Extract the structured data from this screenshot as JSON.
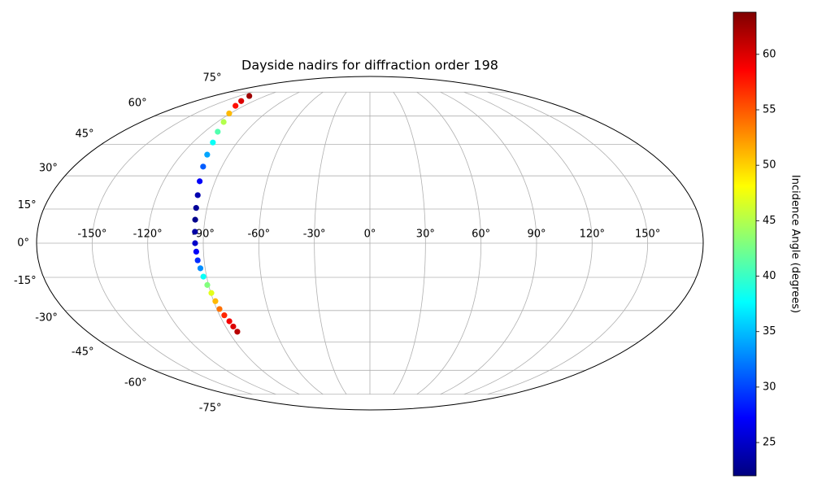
{
  "chart_data": {
    "type": "scatter",
    "projection": "mollweide",
    "title": "Dayside nadirs for diffraction order 198",
    "x": [
      -138.6,
      -133,
      -128,
      -121,
      -115,
      -110.5,
      -106.4,
      -103.7,
      -101.4,
      -99,
      -97.1,
      -96,
      -95.3,
      -94.7,
      -94.4,
      -93.9,
      -93.5,
      -92.6,
      -91.8,
      -90.7,
      -89.7,
      -89,
      -88.4,
      -87.2,
      -85.9,
      -85.2,
      -84.5
    ],
    "y": [
      72.3,
      69,
      66,
      61.5,
      56.7,
      51.5,
      46,
      40,
      34.3,
      27.5,
      21.2,
      15.5,
      10.3,
      5,
      0,
      -3.7,
      -7.5,
      -11,
      -14.7,
      -18.4,
      -22,
      -25.7,
      -29.3,
      -32.2,
      -35,
      -37.5,
      -40
    ],
    "c": [
      62.5,
      60,
      58,
      51,
      45,
      41,
      38,
      34,
      31,
      27,
      24,
      23,
      22.5,
      23.5,
      25,
      27,
      29,
      33,
      38,
      43,
      47,
      51,
      54,
      57,
      59,
      60,
      61.5
    ],
    "colormap": "jet",
    "xlim": [
      -180,
      180
    ],
    "ylim": [
      -90,
      90
    ],
    "grid": true,
    "xticks": [
      {
        "value": -150,
        "label": "-150°"
      },
      {
        "value": -120,
        "label": "-120°"
      },
      {
        "value": -90,
        "label": "-90°"
      },
      {
        "value": -60,
        "label": "-60°"
      },
      {
        "value": -30,
        "label": "-30°"
      },
      {
        "value": 0,
        "label": "0°"
      },
      {
        "value": 30,
        "label": "30°"
      },
      {
        "value": 60,
        "label": "60°"
      },
      {
        "value": 90,
        "label": "90°"
      },
      {
        "value": 120,
        "label": "120°"
      },
      {
        "value": 150,
        "label": "150°"
      }
    ],
    "yticks": [
      {
        "value": -75,
        "label": "-75°"
      },
      {
        "value": -60,
        "label": "-60°"
      },
      {
        "value": -45,
        "label": "-45°"
      },
      {
        "value": -30,
        "label": "-30°"
      },
      {
        "value": -15,
        "label": "-15°"
      },
      {
        "value": 0,
        "label": "0°"
      },
      {
        "value": 15,
        "label": "15°"
      },
      {
        "value": 30,
        "label": "30°"
      },
      {
        "value": 45,
        "label": "45°"
      },
      {
        "value": 60,
        "label": "60°"
      },
      {
        "value": 75,
        "label": "75°"
      }
    ],
    "colorbar": {
      "label": "Incidence Angle (degrees)",
      "clim": [
        22,
        63.8
      ],
      "ticks": [
        25,
        30,
        35,
        40,
        45,
        50,
        55,
        60
      ]
    }
  }
}
